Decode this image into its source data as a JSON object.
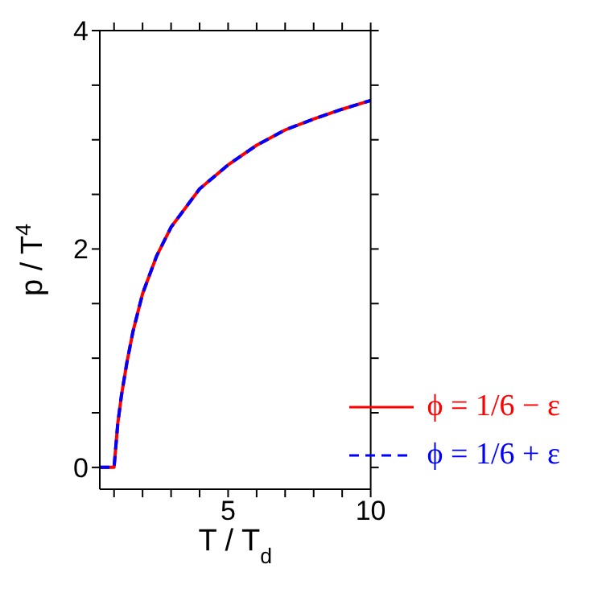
{
  "chart_data": {
    "type": "line",
    "xlabel": "T / T$_{d}$",
    "ylabel": "p / T$^{4}$",
    "x": [
      0.5,
      1.0,
      1.13,
      1.26,
      1.45,
      1.66,
      2.0,
      2.5,
      3.0,
      4.0,
      5.0,
      6.0,
      7.0,
      8.0,
      9.0,
      10.0
    ],
    "series": [
      {
        "name": "ϕ = 1/6 − ε",
        "color": "#ff0000",
        "line_style": "solid",
        "values": [
          0,
          0,
          0.4,
          0.66,
          0.96,
          1.24,
          1.59,
          1.94,
          2.2,
          2.55,
          2.77,
          2.95,
          3.09,
          3.19,
          3.28,
          3.36
        ]
      },
      {
        "name": "ϕ = 1/6 + ε",
        "color": "#0000ff",
        "line_style": "dashed",
        "values": [
          0,
          0,
          0.4,
          0.66,
          0.96,
          1.24,
          1.59,
          1.94,
          2.2,
          2.55,
          2.77,
          2.95,
          3.09,
          3.19,
          3.28,
          3.36
        ]
      }
    ],
    "xlim": [
      0.5,
      10
    ],
    "xticks": [
      {
        "value": 1,
        "label": null
      },
      {
        "value": 2,
        "label": null
      },
      {
        "value": 3,
        "label": null
      },
      {
        "value": 4,
        "label": null
      },
      5,
      {
        "value": 6,
        "label": null
      },
      {
        "value": 7,
        "label": null
      },
      {
        "value": 8,
        "label": null
      },
      {
        "value": 9,
        "label": null
      },
      10
    ],
    "ylim": [
      -0.2,
      4
    ],
    "yticks": [
      0,
      {
        "value": 0.5,
        "label": null
      },
      {
        "value": 1,
        "label": null
      },
      {
        "value": 1.5,
        "label": null
      },
      2,
      {
        "value": 2.5,
        "label": null
      },
      {
        "value": 3,
        "label": null
      },
      {
        "value": 3.5,
        "label": null
      },
      4
    ],
    "legend": "bottom right",
    "grid": false,
    "marker": "none"
  }
}
